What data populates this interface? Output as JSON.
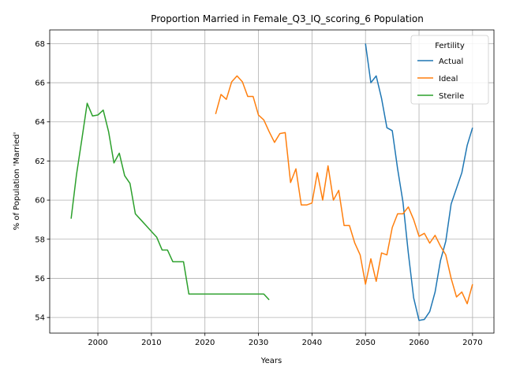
{
  "chart_data": {
    "type": "line",
    "title": "Proportion Married in Female_Q3_IQ_scoring_6 Population",
    "xlabel": "Years",
    "ylabel": "% of Population 'Married'",
    "xlim": [
      1991,
      2074
    ],
    "ylim": [
      53.2,
      68.7
    ],
    "xticks": [
      2000,
      2010,
      2020,
      2030,
      2040,
      2050,
      2060,
      2070
    ],
    "yticks": [
      54,
      56,
      58,
      60,
      62,
      64,
      66,
      68
    ],
    "grid": true,
    "legend": {
      "title": "Fertility",
      "placement": "top-right"
    },
    "series": [
      {
        "name": "Actual",
        "color": "#1f77b4",
        "points": [
          [
            2050,
            68.0
          ],
          [
            2051,
            66.0
          ],
          [
            2052,
            66.35
          ],
          [
            2053,
            65.2
          ],
          [
            2054,
            63.7
          ],
          [
            2055,
            63.55
          ],
          [
            2056,
            61.6
          ],
          [
            2057,
            59.9
          ],
          [
            2058,
            57.3
          ],
          [
            2059,
            55.0
          ],
          [
            2060,
            53.85
          ],
          [
            2061,
            53.9
          ],
          [
            2062,
            54.3
          ],
          [
            2063,
            55.3
          ],
          [
            2064,
            56.9
          ],
          [
            2065,
            57.9
          ],
          [
            2066,
            59.8
          ],
          [
            2067,
            60.6
          ],
          [
            2068,
            61.4
          ],
          [
            2069,
            62.8
          ],
          [
            2070,
            63.7
          ]
        ]
      },
      {
        "name": "Ideal",
        "color": "#ff7f0e",
        "points": [
          [
            2022,
            64.4
          ],
          [
            2023,
            65.4
          ],
          [
            2024,
            65.15
          ],
          [
            2025,
            66.05
          ],
          [
            2026,
            66.35
          ],
          [
            2027,
            66.05
          ],
          [
            2028,
            65.3
          ],
          [
            2029,
            65.3
          ],
          [
            2030,
            64.35
          ],
          [
            2031,
            64.1
          ],
          [
            2032,
            63.5
          ],
          [
            2033,
            62.95
          ],
          [
            2034,
            63.4
          ],
          [
            2035,
            63.45
          ],
          [
            2036,
            60.9
          ],
          [
            2037,
            61.6
          ],
          [
            2038,
            59.75
          ],
          [
            2039,
            59.75
          ],
          [
            2040,
            59.85
          ],
          [
            2041,
            61.4
          ],
          [
            2042,
            60.0
          ],
          [
            2043,
            61.75
          ],
          [
            2044,
            60.0
          ],
          [
            2045,
            60.5
          ],
          [
            2046,
            58.7
          ],
          [
            2047,
            58.7
          ],
          [
            2048,
            57.8
          ],
          [
            2049,
            57.2
          ],
          [
            2050,
            55.7
          ],
          [
            2051,
            57.0
          ],
          [
            2052,
            55.85
          ],
          [
            2053,
            57.3
          ],
          [
            2054,
            57.2
          ],
          [
            2055,
            58.6
          ],
          [
            2056,
            59.3
          ],
          [
            2057,
            59.3
          ],
          [
            2058,
            59.65
          ],
          [
            2059,
            59.0
          ],
          [
            2060,
            58.15
          ],
          [
            2061,
            58.3
          ],
          [
            2062,
            57.8
          ],
          [
            2063,
            58.2
          ],
          [
            2064,
            57.65
          ],
          [
            2065,
            57.2
          ],
          [
            2066,
            56.0
          ],
          [
            2067,
            55.05
          ],
          [
            2068,
            55.3
          ],
          [
            2069,
            54.7
          ],
          [
            2070,
            55.7
          ]
        ]
      },
      {
        "name": "Sterile",
        "color": "#2ca02c",
        "points": [
          [
            1995,
            59.05
          ],
          [
            1996,
            61.3
          ],
          [
            1997,
            63.1
          ],
          [
            1998,
            64.95
          ],
          [
            1999,
            64.3
          ],
          [
            2000,
            64.35
          ],
          [
            2001,
            64.6
          ],
          [
            2002,
            63.5
          ],
          [
            2003,
            61.9
          ],
          [
            2004,
            62.4
          ],
          [
            2005,
            61.25
          ],
          [
            2006,
            60.85
          ],
          [
            2007,
            59.3
          ],
          [
            2008,
            59.0
          ],
          [
            2009,
            58.7
          ],
          [
            2010,
            58.4
          ],
          [
            2011,
            58.1
          ],
          [
            2012,
            57.45
          ],
          [
            2013,
            57.45
          ],
          [
            2014,
            56.85
          ],
          [
            2015,
            56.85
          ],
          [
            2016,
            56.85
          ],
          [
            2017,
            55.2
          ],
          [
            2018,
            55.2
          ],
          [
            2019,
            55.2
          ],
          [
            2020,
            55.2
          ],
          [
            2021,
            55.2
          ],
          [
            2022,
            55.2
          ],
          [
            2023,
            55.2
          ],
          [
            2024,
            55.2
          ],
          [
            2025,
            55.2
          ],
          [
            2026,
            55.2
          ],
          [
            2027,
            55.2
          ],
          [
            2028,
            55.2
          ],
          [
            2029,
            55.2
          ],
          [
            2030,
            55.2
          ],
          [
            2031,
            55.2
          ],
          [
            2032,
            54.9
          ]
        ]
      }
    ]
  }
}
